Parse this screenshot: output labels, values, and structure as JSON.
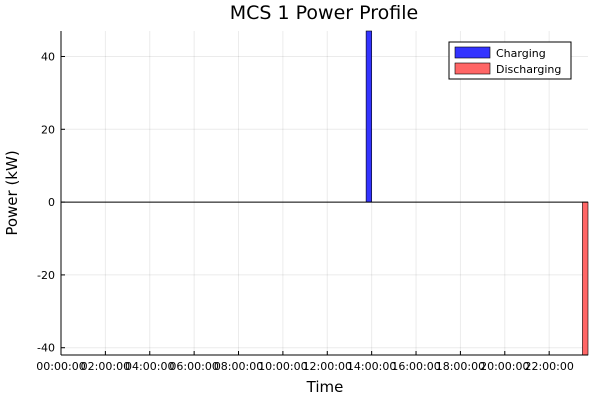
{
  "chart_data": {
    "type": "bar",
    "title": "MCS 1 Power Profile",
    "xlabel": "Time",
    "ylabel": "Power (kW)",
    "x_unit": "time of day",
    "xlim": [
      "00:00:00",
      "23:45:00"
    ],
    "ylim": [
      -42,
      47
    ],
    "yticks": [
      -40,
      -20,
      0,
      20,
      40
    ],
    "xticks": [
      "00:00:00",
      "02:00:00",
      "04:00:00",
      "06:00:00",
      "08:00:00",
      "10:00:00",
      "12:00:00",
      "14:00:00",
      "16:00:00",
      "18:00:00",
      "20:00:00",
      "22:00:00"
    ],
    "grid": true,
    "legend_position": "top-right",
    "bar_width_minutes": 15,
    "series": [
      {
        "name": "Charging",
        "color": "#3333ff",
        "points": [
          {
            "x": "13:45:00",
            "y": 47
          }
        ]
      },
      {
        "name": "Discharging",
        "color": "#ff6666",
        "points": [
          {
            "x": "23:30:00",
            "y": -42
          }
        ]
      }
    ]
  }
}
